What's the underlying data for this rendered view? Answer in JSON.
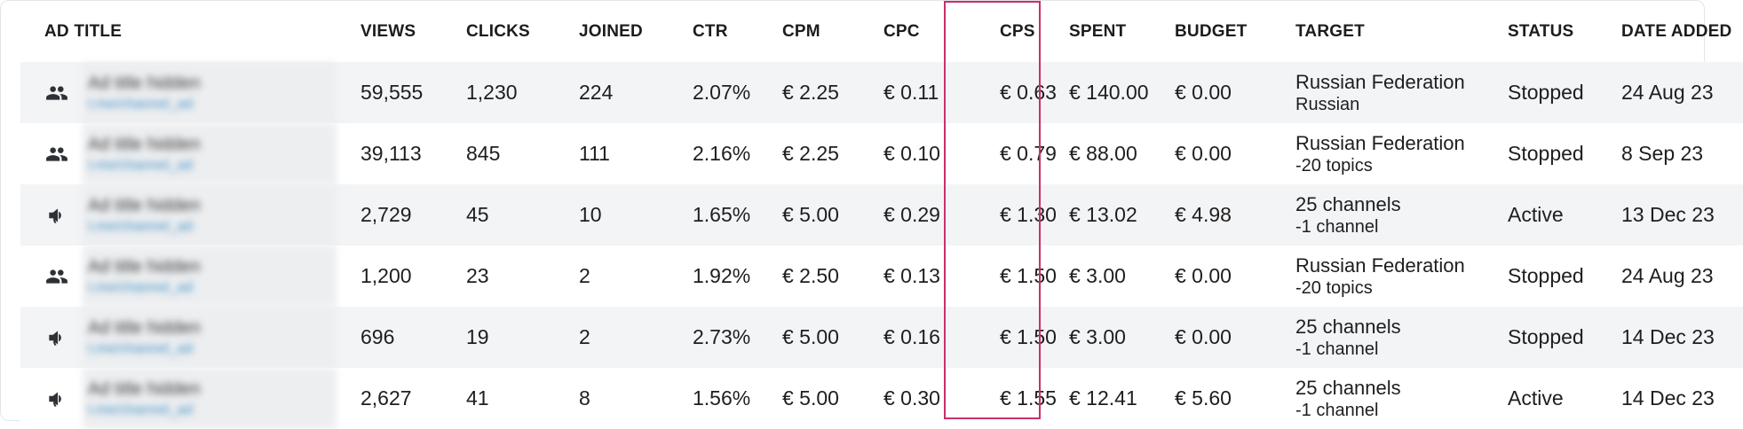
{
  "columns": [
    "AD TITLE",
    "VIEWS",
    "CLICKS",
    "JOINED",
    "CTR",
    "CPM",
    "CPC",
    "CPS",
    "SPENT",
    "BUDGET",
    "TARGET",
    "STATUS",
    "DATE ADDED"
  ],
  "rows": [
    {
      "icon": "group-icon",
      "title": "Ad title hidden",
      "link": "t.me/channel_ad",
      "views": "59,555",
      "clicks": "1,230",
      "joined": "224",
      "ctr": "2.07%",
      "cpm": "€ 2.25",
      "cpc": "€ 0.11",
      "cps": "€ 0.63",
      "spent": "€ 140.00",
      "budget": "€ 0.00",
      "target_main": "Russian Federation",
      "target_sub": "Russian",
      "status": "Stopped",
      "date": "24 Aug 23"
    },
    {
      "icon": "group-icon",
      "title": "Ad title hidden",
      "link": "t.me/channel_ad",
      "views": "39,113",
      "clicks": "845",
      "joined": "111",
      "ctr": "2.16%",
      "cpm": "€ 2.25",
      "cpc": "€ 0.10",
      "cps": "€ 0.79",
      "spent": "€ 88.00",
      "budget": "€ 0.00",
      "target_main": "Russian Federation",
      "target_sub": "-20 topics",
      "status": "Stopped",
      "date": "8 Sep 23"
    },
    {
      "icon": "megaphone-icon",
      "title": "Ad title hidden",
      "link": "t.me/channel_ad",
      "views": "2,729",
      "clicks": "45",
      "joined": "10",
      "ctr": "1.65%",
      "cpm": "€ 5.00",
      "cpc": "€ 0.29",
      "cps": "€ 1.30",
      "spent": "€ 13.02",
      "budget": "€ 4.98",
      "target_main": "25 channels",
      "target_sub": "-1 channel",
      "status": "Active",
      "date": "13 Dec 23"
    },
    {
      "icon": "group-icon",
      "title": "Ad title hidden",
      "link": "t.me/channel_ad",
      "views": "1,200",
      "clicks": "23",
      "joined": "2",
      "ctr": "1.92%",
      "cpm": "€ 2.50",
      "cpc": "€ 0.13",
      "cps": "€ 1.50",
      "spent": "€ 3.00",
      "budget": "€ 0.00",
      "target_main": "Russian Federation",
      "target_sub": "-20 topics",
      "status": "Stopped",
      "date": "24 Aug 23"
    },
    {
      "icon": "megaphone-icon",
      "title": "Ad title hidden",
      "link": "t.me/channel_ad",
      "views": "696",
      "clicks": "19",
      "joined": "2",
      "ctr": "2.73%",
      "cpm": "€ 5.00",
      "cpc": "€ 0.16",
      "cps": "€ 1.50",
      "spent": "€ 3.00",
      "budget": "€ 0.00",
      "target_main": "25 channels",
      "target_sub": "-1 channel",
      "status": "Stopped",
      "date": "14 Dec 23"
    },
    {
      "icon": "megaphone-icon",
      "title": "Ad title hidden",
      "link": "t.me/channel_ad",
      "views": "2,627",
      "clicks": "41",
      "joined": "8",
      "ctr": "1.56%",
      "cpm": "€ 5.00",
      "cpc": "€ 0.30",
      "cps": "€ 1.55",
      "spent": "€ 12.41",
      "budget": "€ 5.60",
      "target_main": "25 channels",
      "target_sub": "-1 channel",
      "status": "Active",
      "date": "14 Dec 23"
    }
  ],
  "colors": {
    "accent_link": "#2b8bbf",
    "highlight_outline": "#c9306c",
    "row_stripe": "#f3f4f6"
  }
}
